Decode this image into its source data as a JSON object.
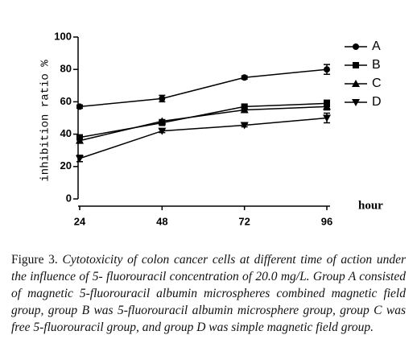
{
  "chart_data": {
    "type": "line",
    "x": [
      24,
      48,
      72,
      96
    ],
    "xlim": [
      24,
      96
    ],
    "xticks": [
      24,
      48,
      72,
      96
    ],
    "ylim": [
      0,
      100
    ],
    "yticks": [
      0,
      20,
      40,
      60,
      80,
      100
    ],
    "xlabel": "hour",
    "ylabel": "inhibition ratio %",
    "legend": "upper-right",
    "series": [
      {
        "name": "A",
        "color": "#000000",
        "marker": "circle",
        "values": [
          57,
          62,
          75,
          80
        ],
        "errors": [
          1,
          2,
          1,
          3
        ]
      },
      {
        "name": "B",
        "color": "#000000",
        "marker": "square",
        "values": [
          38,
          47,
          57,
          59
        ],
        "errors": [
          1,
          1,
          1,
          2
        ]
      },
      {
        "name": "C",
        "color": "#000000",
        "marker": "triangle-up",
        "values": [
          36,
          48,
          55,
          57
        ],
        "errors": [
          1,
          1,
          1,
          2
        ]
      },
      {
        "name": "D",
        "color": "#000000",
        "marker": "triangle-down",
        "values": [
          25,
          42,
          45.5,
          50
        ],
        "errors": [
          2,
          1,
          1,
          3
        ]
      }
    ]
  },
  "caption": {
    "label": "Figure 3.",
    "text": "Cytotoxicity of colon cancer cells at different time of action under the influence of 5- fluorouracil concentration of 20.0 mg/L. Group A consisted of magnetic 5-fluorouracil albumin microspheres combined magnetic field group, group B was 5-fluorouracil albumin microsphere group, group C was free 5-fluorouracil group, and group D was simple magnetic field group."
  }
}
